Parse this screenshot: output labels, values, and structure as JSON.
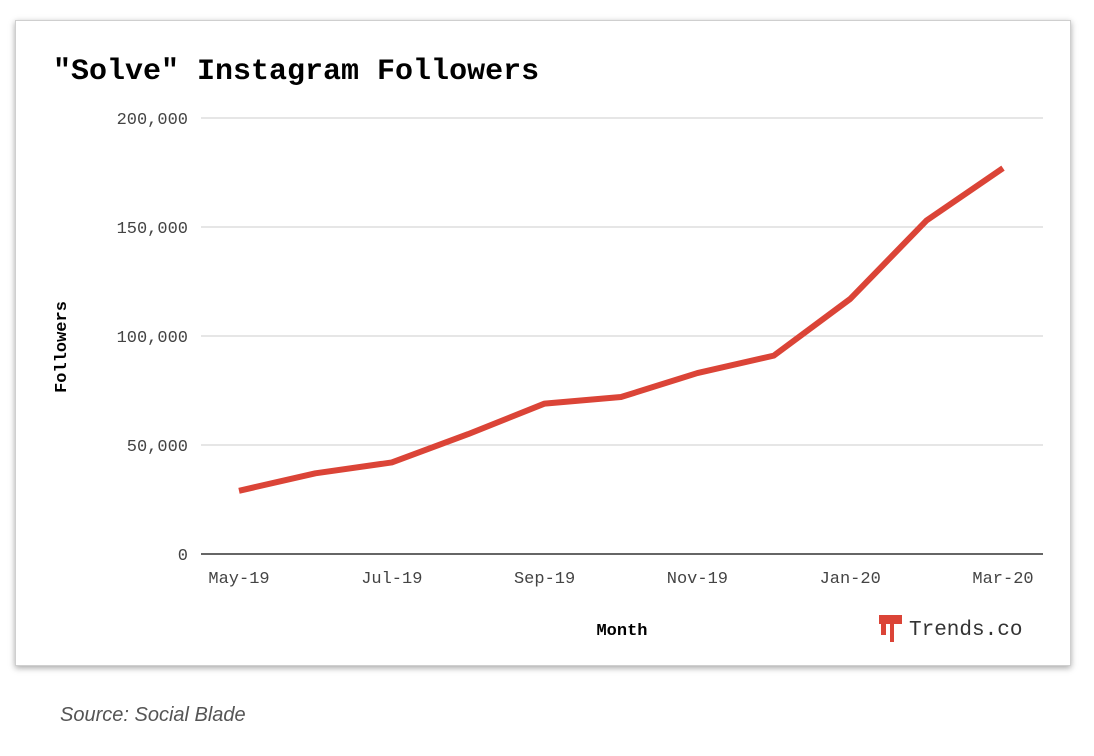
{
  "chart_data": {
    "type": "line",
    "title": "\"Solve\" Instagram Followers",
    "xlabel": "Month",
    "ylabel": "Followers",
    "x": [
      "May-19",
      "Jun-19",
      "Jul-19",
      "Aug-19",
      "Sep-19",
      "Oct-19",
      "Nov-19",
      "Dec-19",
      "Jan-20",
      "Feb-20",
      "Mar-20"
    ],
    "x_tick_labels": [
      "May-19",
      "Jul-19",
      "Sep-19",
      "Nov-19",
      "Jan-20",
      "Mar-20"
    ],
    "series": [
      {
        "values": [
          29000,
          37000,
          42000,
          55000,
          69000,
          72000,
          83000,
          91000,
          117000,
          153000,
          177000
        ],
        "color": "#db4437"
      }
    ],
    "ylim": [
      0,
      200000
    ],
    "y_ticks": [
      0,
      50000,
      100000,
      150000,
      200000
    ],
    "y_tick_labels": [
      "0",
      "50,000",
      "100,000",
      "150,000",
      "200,000"
    ],
    "grid": true,
    "legend": "none"
  },
  "branding": {
    "logo_text": "Trends.co",
    "logo_color": "#db4437"
  },
  "source": "Source: Social Blade"
}
